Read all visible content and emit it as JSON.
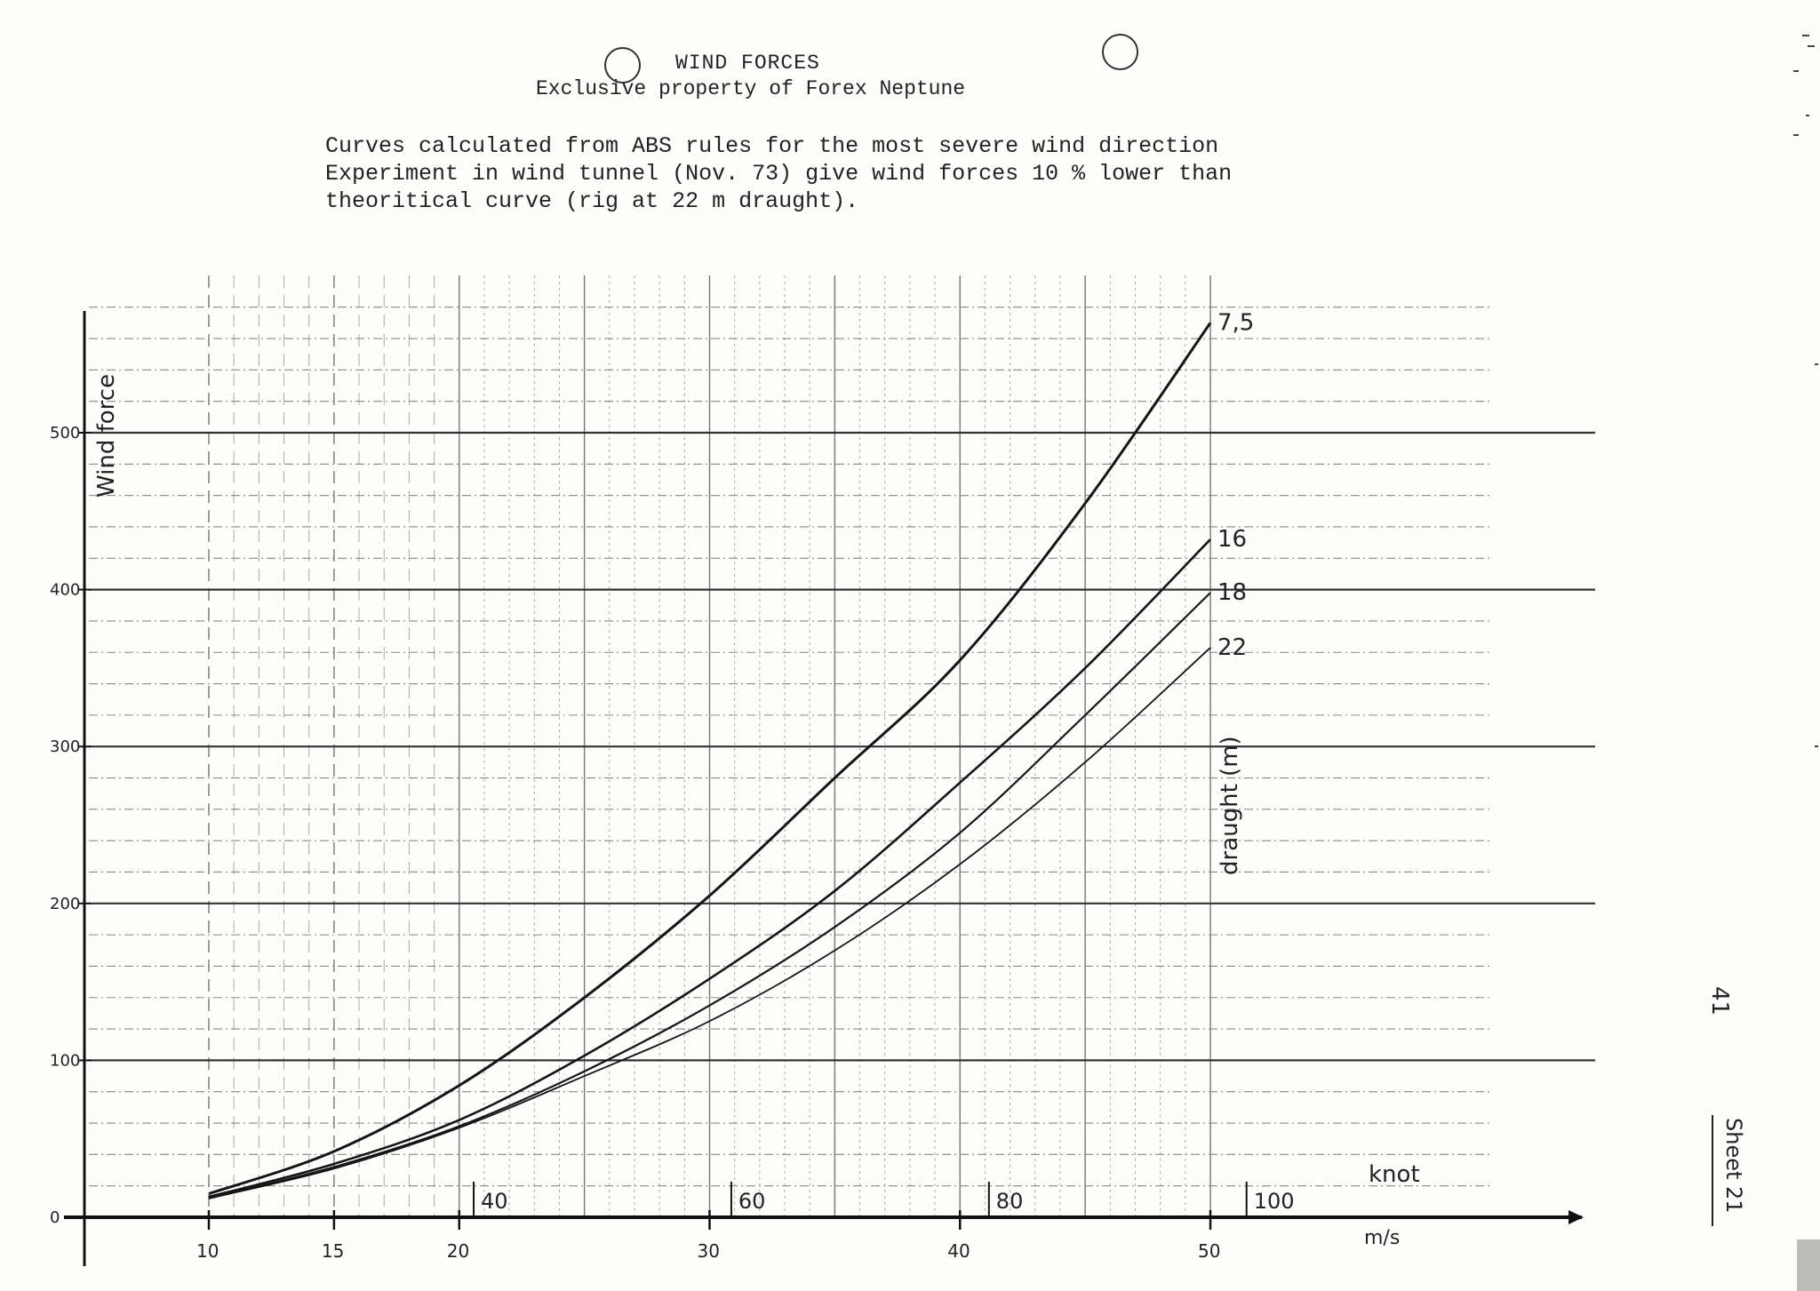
{
  "document": {
    "title": "WIND FORCES",
    "subtitle": "Exclusive property of Forex Neptune",
    "description_lines": [
      "Curves calculated from ABS rules for the most severe wind direction",
      "Experiment in wind tunnel (Nov. 73) give wind forces 10 % lower than",
      "theoritical curve (rig at 22 m draught)."
    ],
    "page_number": "41",
    "sheet_label": "Sheet 21"
  },
  "chart_data": {
    "type": "line",
    "title": "WIND FORCES",
    "ylabel": "Wind force",
    "xlabel": "m/s",
    "secondary_xlabel": "knot",
    "curve_axis_label": "draught (m)",
    "xlim": [
      10,
      50
    ],
    "ylim": [
      0,
      500
    ],
    "x_ticks": [
      10,
      15,
      20,
      30,
      40,
      50
    ],
    "x_tick_labels": [
      "10",
      "15",
      "20",
      "30",
      "40",
      "50"
    ],
    "knot_ticks": [
      40,
      60,
      80,
      100
    ],
    "knot_tick_labels": [
      "40",
      "60",
      "80",
      "100"
    ],
    "y_ticks": [
      0,
      100,
      200,
      300,
      400,
      500
    ],
    "y_tick_labels": [
      "0",
      "100",
      "200",
      "300",
      "400",
      "500"
    ],
    "grid": true,
    "series": [
      {
        "name": "7,5",
        "x": [
          10,
          15,
          20,
          25,
          30,
          35,
          40,
          45,
          50
        ],
        "values": [
          15,
          42,
          84,
          140,
          205,
          280,
          355,
          455,
          570
        ],
        "width": 3
      },
      {
        "name": "16",
        "x": [
          10,
          15,
          20,
          25,
          30,
          35,
          40,
          45,
          50
        ],
        "values": [
          13,
          34,
          62,
          103,
          152,
          208,
          277,
          350,
          432
        ],
        "width": 2.6
      },
      {
        "name": "18",
        "x": [
          10,
          15,
          20,
          25,
          30,
          35,
          40,
          45,
          50
        ],
        "values": [
          12,
          32,
          58,
          93,
          135,
          185,
          245,
          320,
          398
        ],
        "width": 2.2
      },
      {
        "name": "22",
        "x": [
          10,
          15,
          20,
          25,
          30,
          35,
          40,
          45,
          50
        ],
        "values": [
          12,
          31,
          57,
          90,
          125,
          170,
          225,
          290,
          363
        ],
        "width": 1.8
      }
    ]
  }
}
